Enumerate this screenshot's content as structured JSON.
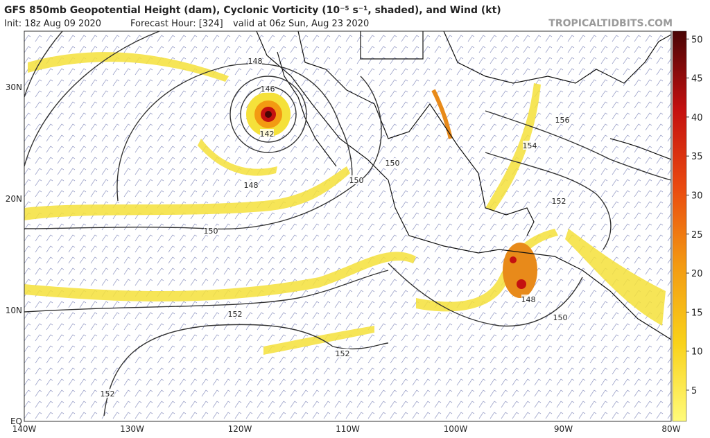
{
  "header": {
    "title": "GFS 850mb Geopotential Height (dam), Cyclonic Vorticity (10⁻⁵ s⁻¹, shaded), and Wind (kt)",
    "init": "Init: 18z Aug 09 2020",
    "forecast_hour": "Forecast Hour: [324]",
    "valid": "valid at 06z Sun, Aug 23 2020",
    "source": "TROPICALTIDBITS.COM"
  },
  "map": {
    "lat_labels": [
      "30N",
      "20N",
      "10N",
      "EQ"
    ],
    "lon_labels": [
      "140W",
      "130W",
      "120W",
      "110W",
      "100W",
      "90W",
      "80W"
    ],
    "contour_labels": [
      "148",
      "146",
      "142",
      "148",
      "150",
      "150",
      "150",
      "156",
      "154",
      "152",
      "152",
      "152",
      "152",
      "148",
      "150"
    ]
  },
  "colorbar": {
    "ticks": [
      5,
      10,
      15,
      20,
      25,
      30,
      35,
      40,
      45,
      50
    ],
    "range": [
      1,
      51
    ]
  }
}
